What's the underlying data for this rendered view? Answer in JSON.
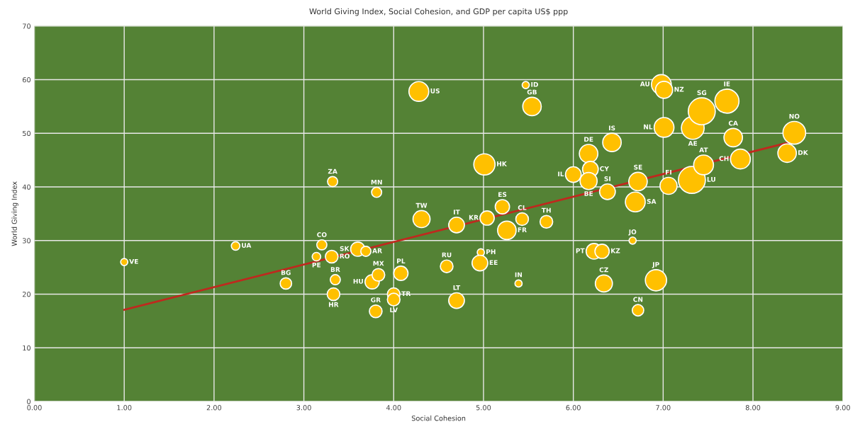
{
  "chart_data": {
    "type": "bubble",
    "title": "World Giving Index, Social Cohesion, and GDP per capita US$ ppp",
    "xlabel": "Social Cohesion",
    "ylabel": "World Giving Index",
    "xlim": [
      0,
      9
    ],
    "xticks": [
      {
        "value": 0,
        "label": "0.00"
      },
      {
        "value": 1,
        "label": "1.00"
      },
      {
        "value": 2,
        "label": "2.00"
      },
      {
        "value": 3,
        "label": "3.00"
      },
      {
        "value": 4,
        "label": "4.00"
      },
      {
        "value": 5,
        "label": "5.00"
      },
      {
        "value": 6,
        "label": "6.00"
      },
      {
        "value": 7,
        "label": "7.00"
      },
      {
        "value": 8,
        "label": "8.00"
      },
      {
        "value": 9,
        "label": "9.00"
      }
    ],
    "ylim": [
      0,
      70
    ],
    "yticks": [
      0,
      10,
      20,
      30,
      40,
      50,
      60,
      70
    ],
    "grid": true,
    "marker": "circle",
    "series": [
      {
        "color": "#ffc000",
        "x": [
          1.0,
          2.24,
          2.8,
          3.2,
          3.14,
          3.31,
          3.35,
          3.33,
          3.6,
          3.69,
          3.76,
          3.83,
          3.8,
          4.0,
          4.0,
          4.08,
          3.32,
          3.81,
          4.28,
          4.31,
          4.7,
          4.7,
          4.59,
          4.97,
          4.96,
          5.39,
          5.01,
          5.04,
          5.21,
          5.43,
          5.26,
          5.7,
          5.47,
          5.54,
          6.0,
          6.17,
          6.19,
          6.17,
          6.43,
          6.38,
          6.72,
          6.69,
          6.23,
          6.32,
          6.66,
          6.34,
          6.72,
          6.92,
          6.98,
          7.01,
          7.01,
          7.06,
          7.32,
          7.33,
          7.43,
          7.45,
          7.71,
          7.78,
          7.86,
          8.46,
          8.38
        ],
        "values": [
          26,
          29,
          22,
          29.2,
          27,
          27,
          22.7,
          20,
          28.4,
          28,
          22.3,
          23.6,
          16.8,
          20,
          19,
          23.9,
          41,
          39,
          57.8,
          34,
          32.9,
          18.8,
          25.2,
          27.8,
          25.8,
          22,
          44.2,
          34.2,
          36.3,
          34,
          31.9,
          33.5,
          59,
          55,
          42.3,
          46.2,
          43.3,
          41.1,
          48.3,
          39.1,
          41,
          37.2,
          28,
          28,
          30,
          22,
          17,
          22.6,
          59.1,
          58.1,
          51.1,
          40.2,
          41.3,
          51,
          54.1,
          44.1,
          56,
          49.2,
          45.2,
          50.1,
          46.3
        ],
        "sizes": [
          0.07,
          0.1,
          0.18,
          0.14,
          0.1,
          0.22,
          0.14,
          0.22,
          0.28,
          0.14,
          0.28,
          0.22,
          0.22,
          0.22,
          0.22,
          0.28,
          0.14,
          0.14,
          0.54,
          0.4,
          0.34,
          0.34,
          0.22,
          0.07,
          0.34,
          0.07,
          0.62,
          0.28,
          0.28,
          0.22,
          0.47,
          0.22,
          0.07,
          0.47,
          0.34,
          0.47,
          0.34,
          0.4,
          0.47,
          0.34,
          0.47,
          0.54,
          0.34,
          0.28,
          0.07,
          0.4,
          0.18,
          0.62,
          0.54,
          0.4,
          0.54,
          0.4,
          1,
          0.71,
          1,
          0.54,
          0.8,
          0.47,
          0.54,
          0.71,
          0.47
        ]
      },
      {
        "type": "line",
        "marker": "none",
        "color": "#c0281e",
        "x": [
          1.0,
          8.4
        ],
        "values": [
          17.1,
          48.3
        ]
      }
    ],
    "annotations": [
      {
        "text": "VE",
        "x": 1.0,
        "y": 26
      },
      {
        "text": "UA",
        "x": 2.24,
        "y": 29
      },
      {
        "text": "BG",
        "x": 2.8,
        "y": 22
      },
      {
        "text": "CO",
        "x": 3.2,
        "y": 29.2
      },
      {
        "text": "PE",
        "x": 3.14,
        "y": 27
      },
      {
        "text": "RO",
        "x": 3.31,
        "y": 27
      },
      {
        "text": "BR",
        "x": 3.35,
        "y": 22.7
      },
      {
        "text": "HR",
        "x": 3.33,
        "y": 20
      },
      {
        "text": "SK",
        "x": 3.6,
        "y": 28.4
      },
      {
        "text": "AR",
        "x": 3.69,
        "y": 28
      },
      {
        "text": "HU",
        "x": 3.76,
        "y": 22.3
      },
      {
        "text": "MX",
        "x": 3.83,
        "y": 23.6
      },
      {
        "text": "GR",
        "x": 3.8,
        "y": 16.8
      },
      {
        "text": "TR",
        "x": 4.0,
        "y": 20
      },
      {
        "text": "LV",
        "x": 4.0,
        "y": 19
      },
      {
        "text": "PL",
        "x": 4.08,
        "y": 23.9
      },
      {
        "text": "ZA",
        "x": 3.32,
        "y": 41
      },
      {
        "text": "MN",
        "x": 3.81,
        "y": 39
      },
      {
        "text": "US",
        "x": 4.28,
        "y": 57.8
      },
      {
        "text": "TW",
        "x": 4.31,
        "y": 34
      },
      {
        "text": "IT",
        "x": 4.7,
        "y": 32.9
      },
      {
        "text": "LT",
        "x": 4.7,
        "y": 18.8
      },
      {
        "text": "RU",
        "x": 4.59,
        "y": 25.2
      },
      {
        "text": "PH",
        "x": 4.97,
        "y": 27.8
      },
      {
        "text": "EE",
        "x": 4.96,
        "y": 25.8
      },
      {
        "text": "IN",
        "x": 5.39,
        "y": 22
      },
      {
        "text": "HK",
        "x": 5.01,
        "y": 44.2
      },
      {
        "text": "KR",
        "x": 5.04,
        "y": 34.2
      },
      {
        "text": "ES",
        "x": 5.21,
        "y": 36.3
      },
      {
        "text": "CL",
        "x": 5.43,
        "y": 34
      },
      {
        "text": "FR",
        "x": 5.26,
        "y": 31.9
      },
      {
        "text": "TH",
        "x": 5.7,
        "y": 33.5
      },
      {
        "text": "ID",
        "x": 5.47,
        "y": 59
      },
      {
        "text": "GB",
        "x": 5.54,
        "y": 55
      },
      {
        "text": "IL",
        "x": 6.0,
        "y": 42.3
      },
      {
        "text": "DE",
        "x": 6.17,
        "y": 46.2
      },
      {
        "text": "CY",
        "x": 6.19,
        "y": 43.3
      },
      {
        "text": "BE",
        "x": 6.17,
        "y": 41.1
      },
      {
        "text": "IS",
        "x": 6.43,
        "y": 48.3
      },
      {
        "text": "SI",
        "x": 6.38,
        "y": 39.1
      },
      {
        "text": "SE",
        "x": 6.72,
        "y": 41
      },
      {
        "text": "SA",
        "x": 6.69,
        "y": 37.2
      },
      {
        "text": "PT",
        "x": 6.23,
        "y": 28
      },
      {
        "text": "KZ",
        "x": 6.32,
        "y": 28
      },
      {
        "text": "JO",
        "x": 6.66,
        "y": 30
      },
      {
        "text": "CZ",
        "x": 6.34,
        "y": 22
      },
      {
        "text": "CN",
        "x": 6.72,
        "y": 17
      },
      {
        "text": "JP",
        "x": 6.92,
        "y": 22.6
      },
      {
        "text": "AU",
        "x": 6.98,
        "y": 59.1
      },
      {
        "text": "NZ",
        "x": 7.01,
        "y": 58.1
      },
      {
        "text": "NL",
        "x": 7.01,
        "y": 51.1
      },
      {
        "text": "FI",
        "x": 7.06,
        "y": 40.2
      },
      {
        "text": "LU",
        "x": 7.32,
        "y": 41.3
      },
      {
        "text": "AE",
        "x": 7.33,
        "y": 51
      },
      {
        "text": "SG",
        "x": 7.43,
        "y": 54.1
      },
      {
        "text": "AT",
        "x": 7.45,
        "y": 44.1
      },
      {
        "text": "IE",
        "x": 7.71,
        "y": 56
      },
      {
        "text": "CA",
        "x": 7.78,
        "y": 49.2
      },
      {
        "text": "CH",
        "x": 7.86,
        "y": 45.2
      },
      {
        "text": "NO",
        "x": 8.46,
        "y": 50.1
      },
      {
        "text": "DK",
        "x": 8.38,
        "y": 46.3
      }
    ]
  }
}
